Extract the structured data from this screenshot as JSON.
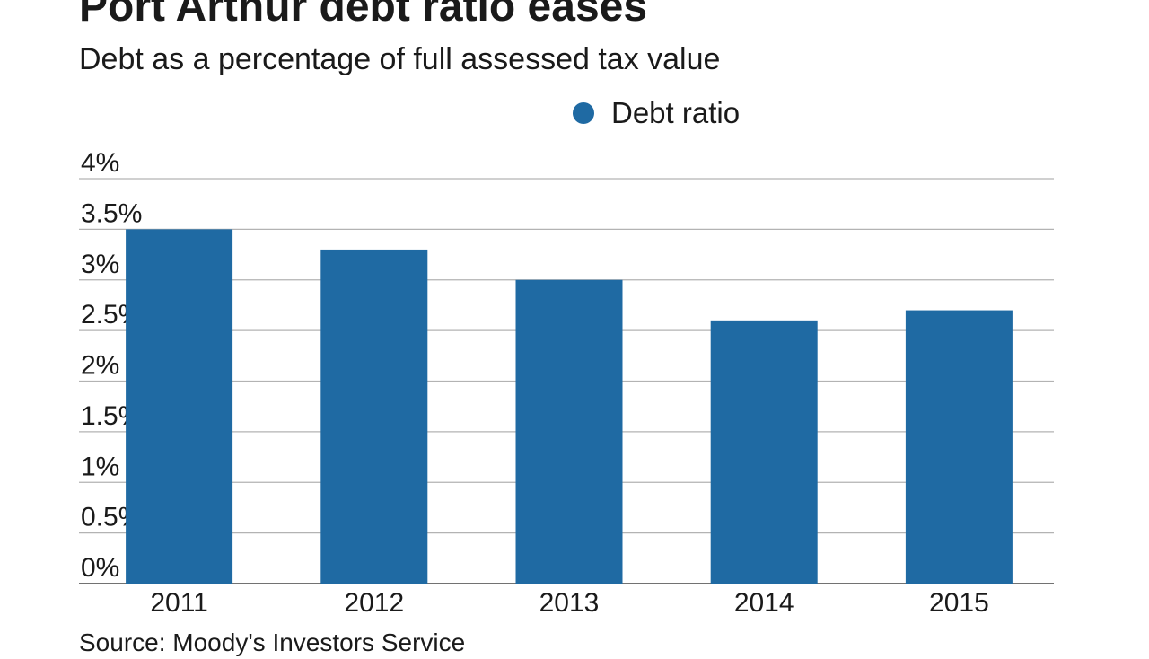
{
  "header": {
    "title": "Port Arthur debt ratio eases",
    "subtitle": "Debt as a percentage of full assessed tax value"
  },
  "footer": {
    "source": "Source: Moody's Investors Service"
  },
  "chart_data": {
    "type": "bar",
    "title": "Port Arthur debt ratio eases",
    "subtitle": "Debt as a percentage of full assessed tax value",
    "categories": [
      "2011",
      "2012",
      "2013",
      "2014",
      "2015"
    ],
    "series": [
      {
        "name": "Debt ratio",
        "color": "#1f6aa3",
        "values": [
          3.5,
          3.3,
          3.0,
          2.6,
          2.7
        ]
      }
    ],
    "yticks": [
      "0%",
      "0.5%",
      "1%",
      "1.5%",
      "2%",
      "2.5%",
      "3%",
      "3.5%",
      "4%"
    ],
    "ylim": [
      0,
      4
    ],
    "xlabel": "",
    "ylabel": "",
    "grid": true,
    "legend": "top-center",
    "source": "Source: Moody's Investors Service"
  }
}
